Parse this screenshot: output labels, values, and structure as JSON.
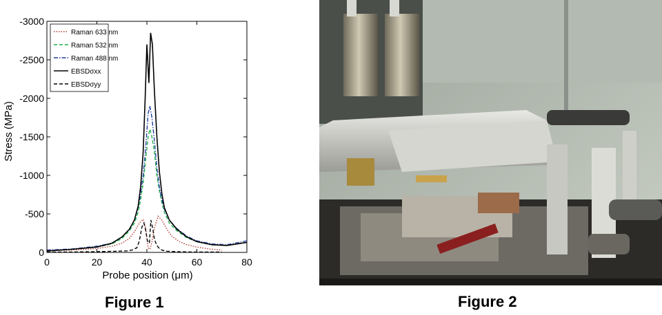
{
  "figure1": {
    "caption": "Figure 1",
    "chart_data": {
      "type": "line",
      "xlabel": "Probe position (μm)",
      "ylabel": "Stress (MPa)",
      "xlim": [
        0,
        80
      ],
      "ylim": [
        0,
        -3000
      ],
      "y_inverted": true,
      "xticks": [
        "0",
        "20",
        "40",
        "60",
        "80"
      ],
      "yticks": [
        "0",
        "-500",
        "-1000",
        "-1500",
        "-2000",
        "-2500",
        "-3000"
      ],
      "legend_position": "top-left",
      "series": [
        {
          "name": "Raman 633 nm",
          "color": "#b03a2e",
          "style": "dotted",
          "x": [
            0,
            10,
            20,
            26,
            30,
            33,
            35,
            37,
            38.5,
            39.5,
            40.5,
            41.2,
            42,
            43,
            44.5,
            46,
            48,
            50,
            53,
            56,
            60,
            65,
            70
          ],
          "y": [
            -20,
            -30,
            -50,
            -80,
            -120,
            -180,
            -270,
            -380,
            -430,
            -320,
            -60,
            -40,
            -130,
            -320,
            -470,
            -420,
            -300,
            -210,
            -140,
            -100,
            -70,
            -45,
            -30
          ]
        },
        {
          "name": "Raman 532 nm",
          "color": "#22b14c",
          "style": "dashed",
          "x": [
            0,
            10,
            20,
            26,
            30,
            33,
            35,
            36.5,
            37.5,
            38.5,
            39.5,
            40.5,
            41.2,
            42,
            43,
            44,
            45,
            46,
            47,
            49,
            52,
            56,
            60,
            66,
            72,
            80
          ],
          "y": [
            -20,
            -40,
            -70,
            -110,
            -180,
            -280,
            -380,
            -520,
            -680,
            -900,
            -1200,
            -1500,
            -1600,
            -1500,
            -1300,
            -1000,
            -800,
            -640,
            -520,
            -380,
            -280,
            -190,
            -140,
            -100,
            -90,
            -130
          ]
        },
        {
          "name": "Raman 488 nm",
          "color": "#1f3f9e",
          "style": "dashdot",
          "x": [
            0,
            10,
            20,
            26,
            30,
            33,
            35,
            36.5,
            37.5,
            38.5,
            39.5,
            40.5,
            41.2,
            42,
            43,
            44,
            45,
            46,
            47,
            49,
            52,
            56,
            60,
            66,
            72,
            80
          ],
          "y": [
            -30,
            -45,
            -80,
            -120,
            -200,
            -300,
            -420,
            -580,
            -760,
            -1000,
            -1350,
            -1800,
            -1900,
            -1750,
            -1450,
            -1100,
            -850,
            -680,
            -560,
            -420,
            -310,
            -210,
            -150,
            -110,
            -100,
            -150
          ]
        },
        {
          "name": "EBSDσxx",
          "color": "#000000",
          "style": "solid",
          "x": [
            0,
            10,
            20,
            26,
            30,
            33,
            35,
            36.5,
            37.5,
            38.5,
            39.3,
            40,
            40.8,
            41.5,
            42.2,
            43,
            44,
            45,
            46,
            47,
            49,
            52,
            56,
            60,
            66,
            72,
            80
          ],
          "y": [
            -20,
            -40,
            -70,
            -120,
            -200,
            -300,
            -420,
            -600,
            -850,
            -1300,
            -2000,
            -2700,
            -2200,
            -2850,
            -2700,
            -2100,
            -1500,
            -1050,
            -760,
            -580,
            -420,
            -300,
            -200,
            -140,
            -100,
            -90,
            -130
          ]
        },
        {
          "name": "EBSDσyy",
          "color": "#000000",
          "style": "dashed",
          "x": [
            0,
            10,
            20,
            28,
            32,
            34,
            36,
            37,
            38,
            38.8,
            39.5,
            40.2,
            41,
            41.6,
            42.4,
            43,
            44,
            45,
            46,
            48,
            52,
            58,
            64,
            70
          ],
          "y": [
            -5,
            -5,
            -10,
            -15,
            -20,
            -30,
            -60,
            -150,
            -330,
            -380,
            -290,
            -150,
            -120,
            -420,
            -300,
            -170,
            -90,
            -50,
            -30,
            -15,
            -10,
            -5,
            -5,
            -5
          ]
        }
      ]
    }
  },
  "figure2": {
    "caption": "Figure 2"
  }
}
